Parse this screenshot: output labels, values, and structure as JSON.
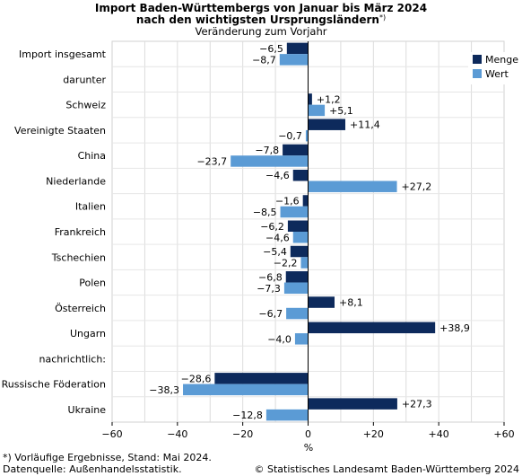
{
  "chart_data": {
    "type": "bar",
    "orientation": "horizontal",
    "title_line1": "Import Baden-Württembergs von Januar bis März 2024",
    "title_line2": "nach den wichtigsten Ursprungsländern",
    "title_sup": "*)",
    "subtitle": "Veränderung zum Vorjahr",
    "xlabel": "%",
    "xlim": [
      -60,
      60
    ],
    "xticks": [
      -60,
      -40,
      -20,
      0,
      20,
      40,
      60
    ],
    "xtick_labels": [
      "−60",
      "−40",
      "−20",
      "0",
      "+20",
      "+40",
      "+60"
    ],
    "grid": true,
    "legend_position": "top-right",
    "categories": [
      "Import insgesamt",
      "darunter",
      "Schweiz",
      "Vereinigte Staaten",
      "China",
      "Niederlande",
      "Italien",
      "Frankreich",
      "Tschechien",
      "Polen",
      "Österreich",
      "Ungarn",
      "nachrichtlich:",
      "Russische Föderation",
      "Ukraine"
    ],
    "series": [
      {
        "name": "Menge",
        "color": "#0d2a5c",
        "values": [
          -6.5,
          null,
          1.2,
          11.4,
          -7.8,
          -4.6,
          -1.6,
          -6.2,
          -5.4,
          -6.8,
          8.1,
          38.9,
          null,
          -28.6,
          27.3
        ],
        "labels": [
          "−6,5",
          "",
          "+1,2",
          "+11,4",
          "−7,8",
          "−4,6",
          "−1,6",
          "−6,2",
          "−5,4",
          "−6,8",
          "+8,1",
          "+38,9",
          "",
          "−28,6",
          "+27,3"
        ]
      },
      {
        "name": "Wert",
        "color": "#5b9bd5",
        "values": [
          -8.7,
          null,
          5.1,
          -0.7,
          -23.7,
          27.2,
          -8.5,
          -4.6,
          -2.2,
          -7.3,
          -6.7,
          -4.0,
          null,
          -38.3,
          -12.8
        ],
        "labels": [
          "−8,7",
          "",
          "+5,1",
          "−0,7",
          "−23,7",
          "+27,2",
          "−8,5",
          "−4,6",
          "−2,2",
          "−7,3",
          "−6,7",
          "−4,0",
          "",
          "−38,3",
          "−12,8"
        ]
      }
    ]
  },
  "footnote": "*) Vorläufige Ergebnisse, Stand: Mai 2024.",
  "source": "Datenquelle: Außenhandelsstatistik.",
  "copyright": "© Statistisches Landesamt Baden-Württemberg 2024"
}
